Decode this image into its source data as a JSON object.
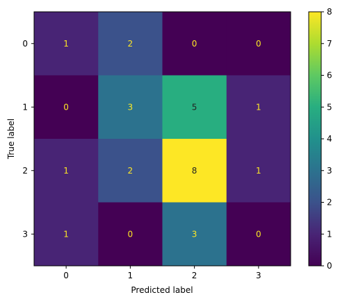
{
  "chart_data": {
    "type": "heatmap",
    "title": "",
    "xlabel": "Predicted label",
    "ylabel": "True label",
    "x_categories": [
      "0",
      "1",
      "2",
      "3"
    ],
    "y_categories": [
      "0",
      "1",
      "2",
      "3"
    ],
    "values": [
      [
        1,
        2,
        0,
        0
      ],
      [
        0,
        3,
        5,
        1
      ],
      [
        1,
        2,
        8,
        1
      ],
      [
        1,
        0,
        3,
        0
      ]
    ],
    "colormap": "viridis",
    "colorbar_range": [
      0,
      8
    ],
    "colorbar_ticks": [
      "0",
      "1",
      "2",
      "3",
      "4",
      "5",
      "6",
      "7",
      "8"
    ],
    "label_color_on_dark": "#fde725",
    "label_color_on_light": "#222222",
    "grid": false
  }
}
